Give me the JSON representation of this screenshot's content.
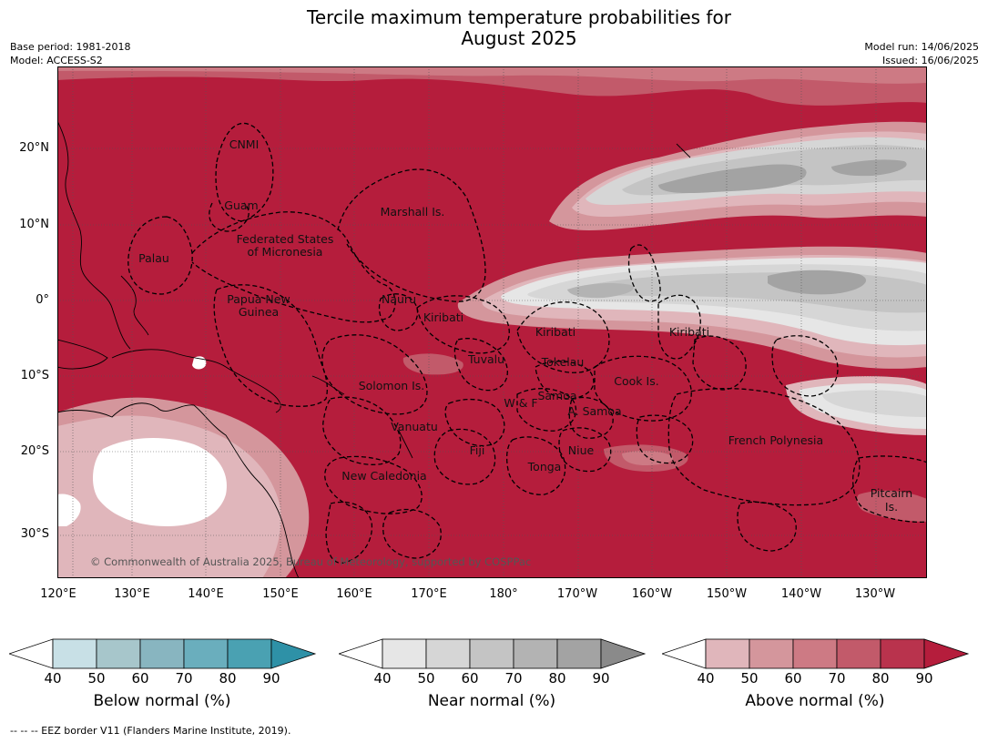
{
  "title_line1": "Tercile maximum temperature probabilities for",
  "title_line2": "August 2025",
  "base_period": "Base period: 1981-2018",
  "model": "Model: ACCESS-S2",
  "model_run": "Model run: 14/06/2025",
  "issued": "Issued: 16/06/2025",
  "copyright": "© Commonwealth of Australia 2025, Bureau of Meteorology, supported by COSPPac",
  "footnote": "--  --  -- EEZ border V11 (Flanders Marine Institute, 2019).",
  "lat_ticks": [
    "20°N",
    "10°N",
    "0°",
    "10°S",
    "20°S",
    "30°S"
  ],
  "lon_ticks": [
    "120°E",
    "130°E",
    "140°E",
    "150°E",
    "160°E",
    "170°E",
    "180°",
    "170°W",
    "160°W",
    "150°W",
    "140°W",
    "130°W"
  ],
  "regions": {
    "cnmi": "CNMI",
    "guam": "Guam",
    "marshall": "Marshall Is.",
    "fsm1": "Federated States",
    "fsm2": "of Micronesia",
    "palau": "Palau",
    "png1": "Papua New",
    "png2": "Guinea",
    "nauru": "Nauru",
    "kiribati_w": "Kiribati",
    "kiribati_c": "Kiribati",
    "kiribati_e": "Kiribati",
    "tuvalu": "Tuvalu",
    "tokelau": "Tokelau",
    "cook": "Cook Is.",
    "solomon": "Solomon Is.",
    "wf": "W & F",
    "samoa": "Samoa",
    "asamoa": "A. Samoa",
    "vanuatu": "Vanuatu",
    "fiji": "Fiji",
    "niue": "Niue",
    "tonga": "Tonga",
    "fp": "French Polynesia",
    "newcal": "New Caledonia",
    "pitcairn1": "Pitcairn",
    "pitcairn2": "Is."
  },
  "legends": {
    "below": {
      "title": "Below normal (%)",
      "ticks": [
        "40",
        "50",
        "60",
        "70",
        "80",
        "90"
      ],
      "colors": [
        "#c8e0e6",
        "#a7c6cb",
        "#88b5c0",
        "#6aaebd",
        "#4aa1b2",
        "#2e91a7"
      ]
    },
    "near": {
      "title": "Near normal (%)",
      "ticks": [
        "40",
        "50",
        "60",
        "70",
        "80",
        "90"
      ],
      "colors": [
        "#e6e6e6",
        "#d6d6d6",
        "#c4c4c4",
        "#b3b3b3",
        "#a3a3a3",
        "#8a8a8a"
      ]
    },
    "above": {
      "title": "Above normal (%)",
      "ticks": [
        "40",
        "50",
        "60",
        "70",
        "80",
        "90"
      ],
      "colors": [
        "#e0b6bb",
        "#d4969c",
        "#cd7a84",
        "#c25a6a",
        "#b9334d",
        "#b51d3c"
      ]
    }
  }
}
